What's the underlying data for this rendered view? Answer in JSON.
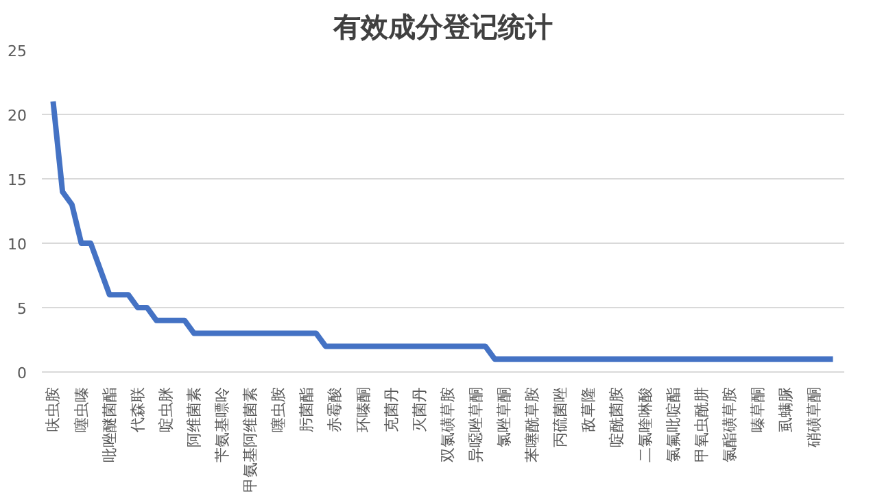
{
  "chart_data": {
    "type": "line",
    "title": "有效成分登记统计",
    "categories": [
      "呋虫胺",
      null,
      null,
      "噻虫嗪",
      null,
      null,
      "吡唑醚菌酯",
      null,
      null,
      "代森联",
      null,
      null,
      "啶虫脒",
      null,
      null,
      "阿维菌素",
      null,
      null,
      "苄氨基嘌呤",
      null,
      null,
      "甲氨基阿维菌素",
      null,
      null,
      "噻虫胺",
      null,
      null,
      "肟菌酯",
      null,
      null,
      "赤霉酸",
      null,
      null,
      "环嗪酮",
      null,
      null,
      "克菌丹",
      null,
      null,
      "灭菌丹",
      null,
      null,
      "双氯磺草胺",
      null,
      null,
      "异噁唑草酮",
      null,
      null,
      "氯唑草酮",
      null,
      null,
      "苯噻酰草胺",
      null,
      null,
      "丙硫菌唑",
      null,
      null,
      "敌草隆",
      null,
      null,
      "啶酰菌胺",
      null,
      null,
      "二氯喹啉酸",
      null,
      null,
      "氯氟吡啶酯",
      null,
      null,
      "甲氧虫酰肼",
      null,
      null,
      "氯酯磺草胺",
      null,
      null,
      "嗪草酮",
      null,
      null,
      "虱螨脲",
      null,
      null,
      "硝磺草酮",
      null,
      null
    ],
    "series": [
      {
        "color": "#4472c4",
        "values": [
          21,
          14,
          13,
          10,
          10,
          8,
          6,
          6,
          6,
          5,
          5,
          4,
          4,
          4,
          4,
          3,
          3,
          3,
          3,
          3,
          3,
          3,
          3,
          3,
          3,
          3,
          3,
          3,
          3,
          2,
          2,
          2,
          2,
          2,
          2,
          2,
          2,
          2,
          2,
          2,
          2,
          2,
          2,
          2,
          2,
          2,
          2,
          1,
          1,
          1,
          1,
          1,
          1,
          1,
          1,
          1,
          1,
          1,
          1,
          1,
          1,
          1,
          1,
          1,
          1,
          1,
          1,
          1,
          1,
          1,
          1,
          1,
          1,
          1,
          1,
          1,
          1,
          1,
          1,
          1,
          1,
          1,
          1,
          1
        ]
      }
    ],
    "ylim": [
      0,
      25
    ],
    "yticks": [
      0,
      5,
      10,
      15,
      20,
      25
    ],
    "grid": "y",
    "marker": "none",
    "line_style": "solid"
  }
}
